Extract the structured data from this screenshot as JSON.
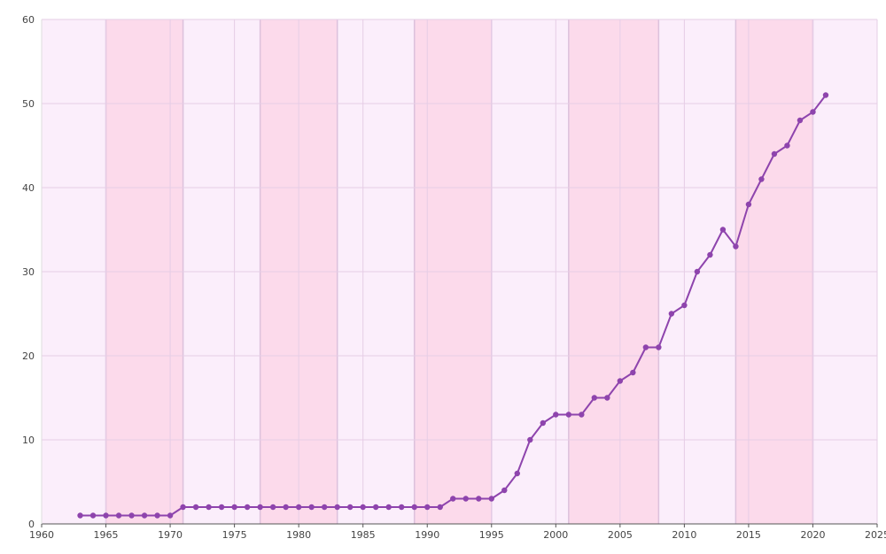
{
  "chart_data": {
    "type": "line",
    "title": "",
    "xlabel": "",
    "ylabel": "",
    "xlim": [
      1960,
      2025
    ],
    "ylim": [
      0,
      60
    ],
    "x_ticks": [
      1960,
      1965,
      1970,
      1975,
      1980,
      1985,
      1990,
      1995,
      2000,
      2005,
      2010,
      2015,
      2020,
      2025
    ],
    "y_ticks": [
      0,
      10,
      20,
      30,
      40,
      50,
      60
    ],
    "x_tick_labels": [
      "1960",
      "1965",
      "1970",
      "1975",
      "1980",
      "1985",
      "1990",
      "1995",
      "2000",
      "2005",
      "2010",
      "2015",
      "2020",
      "2025"
    ],
    "y_tick_labels": [
      "0",
      "10",
      "20",
      "30",
      "40",
      "50",
      "60"
    ],
    "grid": true,
    "legend": "none",
    "colors": {
      "line": "#8e44ad",
      "background": "#fbeefb",
      "band": "#fcdaeb",
      "grid": "#e6cde6"
    },
    "bands": [
      [
        1965,
        1971
      ],
      [
        1977,
        1983
      ],
      [
        1989,
        1995
      ],
      [
        2001,
        2008
      ],
      [
        2014,
        2020
      ]
    ],
    "series": [
      {
        "x": [
          1963,
          1964,
          1965,
          1966,
          1967,
          1968,
          1969,
          1970,
          1971,
          1972,
          1973,
          1974,
          1975,
          1976,
          1977,
          1978,
          1979,
          1980,
          1981,
          1982,
          1983,
          1984,
          1985,
          1986,
          1987,
          1988,
          1989,
          1990,
          1991,
          1992,
          1993,
          1994,
          1995,
          1996,
          1997,
          1998,
          1999,
          2000,
          2001,
          2002,
          2003,
          2004,
          2005,
          2006,
          2007,
          2008,
          2009,
          2010,
          2011,
          2012,
          2013,
          2014,
          2015,
          2016,
          2017,
          2018,
          2019,
          2020,
          2021
        ],
        "y": [
          1,
          1,
          1,
          1,
          1,
          1,
          1,
          1,
          2,
          2,
          2,
          2,
          2,
          2,
          2,
          2,
          2,
          2,
          2,
          2,
          2,
          2,
          2,
          2,
          2,
          2,
          2,
          2,
          2,
          3,
          3,
          3,
          3,
          4,
          6,
          10,
          12,
          13,
          13,
          13,
          15,
          15,
          17,
          18,
          21,
          21,
          25,
          26,
          30,
          32,
          35,
          33,
          38,
          41,
          44,
          45,
          48,
          49,
          51
        ]
      }
    ]
  }
}
